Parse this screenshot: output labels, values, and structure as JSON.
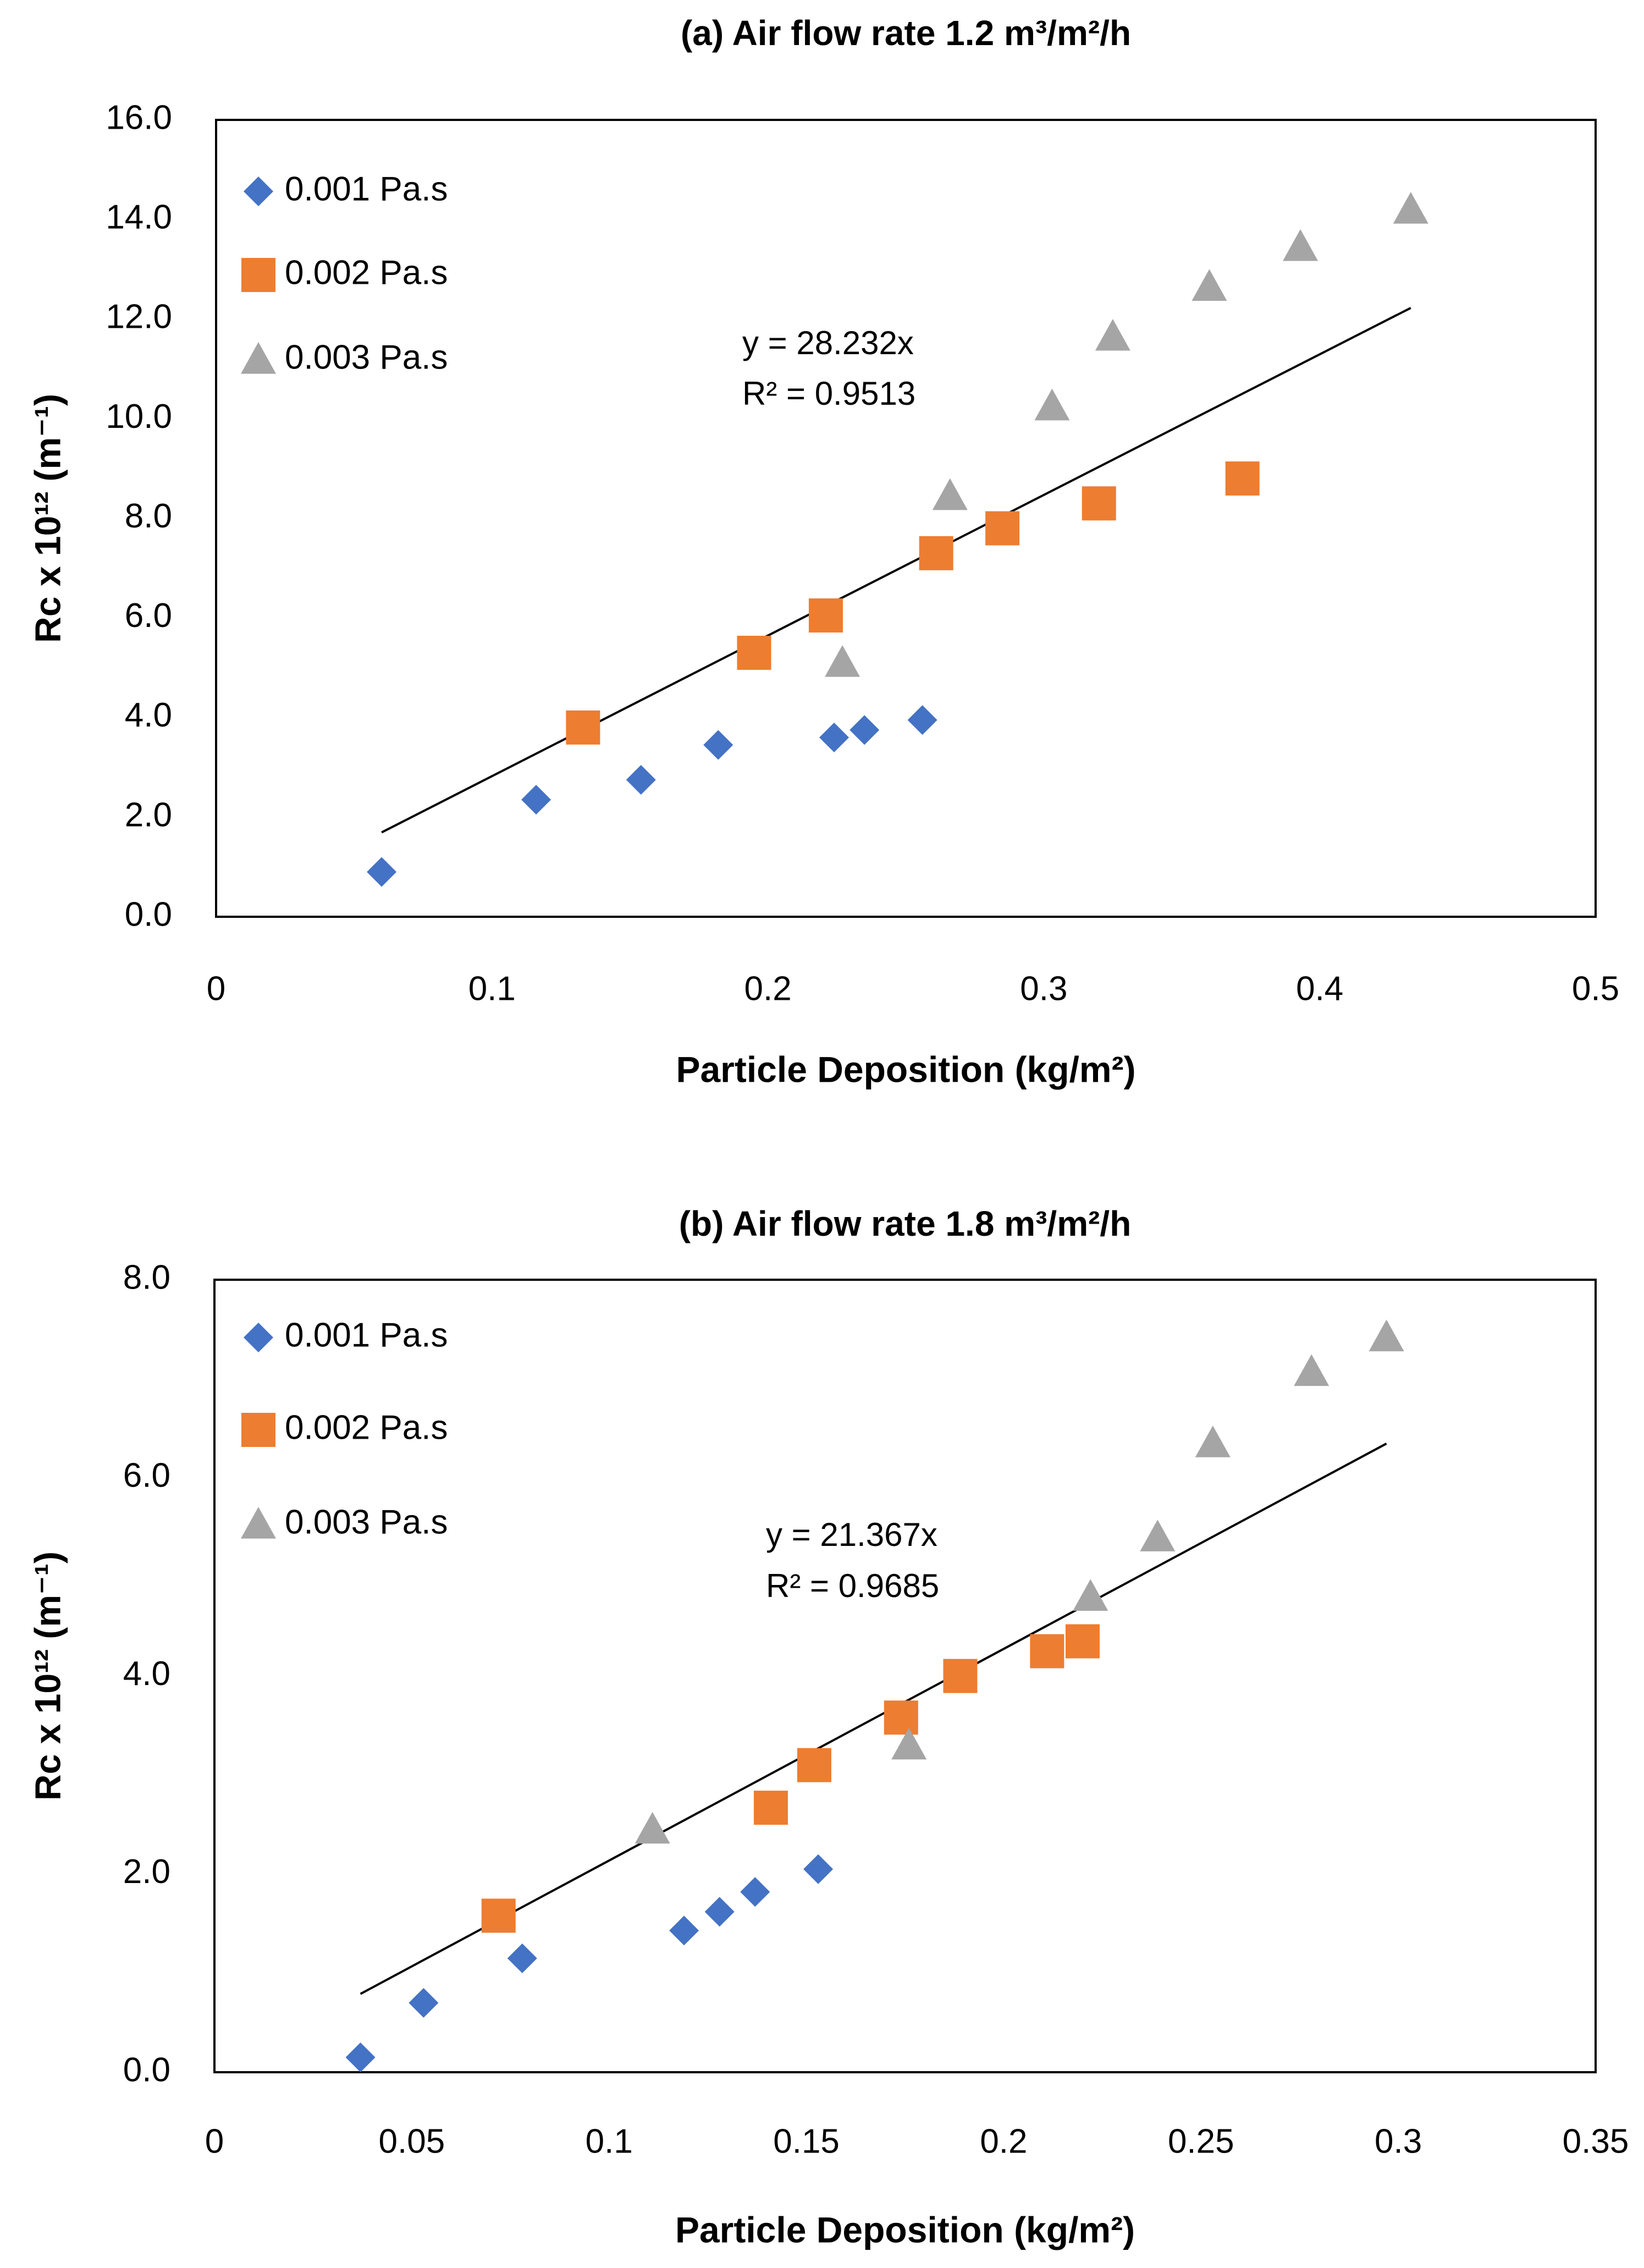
{
  "chart_data": [
    {
      "type": "scatter",
      "title": "(a) Air flow rate 1.2 m³/m²/h",
      "xlabel": "Particle Deposition (kg/m²)",
      "ylabel": "Rc x 10¹² (m⁻¹)",
      "xlim": [
        0,
        0.5
      ],
      "ylim": [
        0,
        16
      ],
      "x_ticks": [
        "0",
        "0.1",
        "0.2",
        "0.3",
        "0.4",
        "0.5"
      ],
      "y_ticks": [
        "0.0",
        "2.0",
        "4.0",
        "6.0",
        "8.0",
        "10.0",
        "12.0",
        "14.0",
        "16.0"
      ],
      "grid": false,
      "legend_position": "top-left",
      "series": [
        {
          "name": "0.001 Pa.s",
          "color": "#4472C4",
          "marker": "diamond",
          "points": [
            [
              0.06,
              0.9
            ],
            [
              0.116,
              2.35
            ],
            [
              0.154,
              2.75
            ],
            [
              0.182,
              3.45
            ],
            [
              0.224,
              3.6
            ],
            [
              0.235,
              3.75
            ],
            [
              0.256,
              3.95
            ]
          ]
        },
        {
          "name": "0.002 Pa.s",
          "color": "#ED7D31",
          "marker": "square",
          "points": [
            [
              0.133,
              3.8
            ],
            [
              0.195,
              5.3
            ],
            [
              0.221,
              6.05
            ],
            [
              0.261,
              7.3
            ],
            [
              0.285,
              7.8
            ],
            [
              0.32,
              8.3
            ],
            [
              0.372,
              8.8
            ]
          ]
        },
        {
          "name": "0.003 Pa.s",
          "color": "#A5A5A5",
          "marker": "triangle",
          "points": [
            [
              0.227,
              5.1
            ],
            [
              0.266,
              8.45
            ],
            [
              0.303,
              10.25
            ],
            [
              0.325,
              11.65
            ],
            [
              0.36,
              12.65
            ],
            [
              0.393,
              13.45
            ],
            [
              0.433,
              14.2
            ]
          ]
        }
      ],
      "trendline": {
        "slope": 28.232,
        "x_range": [
          0.06,
          0.433
        ],
        "equation": "y = 28.232x",
        "r2": "R² = 0.9513"
      }
    },
    {
      "type": "scatter",
      "title": "(b) Air flow rate 1.8 m³/m²/h",
      "xlabel": "Particle Deposition (kg/m²)",
      "ylabel": "Rc x 10¹² (m⁻¹)",
      "xlim": [
        0,
        0.35
      ],
      "ylim": [
        0,
        8
      ],
      "x_ticks": [
        "0",
        "0.05",
        "0.1",
        "0.15",
        "0.2",
        "0.25",
        "0.3",
        "0.35"
      ],
      "y_ticks": [
        "0.0",
        "2.0",
        "4.0",
        "6.0",
        "8.0"
      ],
      "grid": false,
      "legend_position": "top-left",
      "series": [
        {
          "name": "0.001 Pa.s",
          "color": "#4472C4",
          "marker": "diamond",
          "points": [
            [
              0.037,
              0.15
            ],
            [
              0.053,
              0.7
            ],
            [
              0.078,
              1.15
            ],
            [
              0.119,
              1.43
            ],
            [
              0.128,
              1.62
            ],
            [
              0.137,
              1.82
            ],
            [
              0.153,
              2.05
            ]
          ]
        },
        {
          "name": "0.002 Pa.s",
          "color": "#ED7D31",
          "marker": "square",
          "points": [
            [
              0.072,
              1.58
            ],
            [
              0.141,
              2.67
            ],
            [
              0.152,
              3.1
            ],
            [
              0.174,
              3.58
            ],
            [
              0.189,
              4.0
            ],
            [
              0.211,
              4.25
            ],
            [
              0.22,
              4.35
            ]
          ]
        },
        {
          "name": "0.003 Pa.s",
          "color": "#A5A5A5",
          "marker": "triangle",
          "points": [
            [
              0.111,
              2.45
            ],
            [
              0.176,
              3.3
            ],
            [
              0.222,
              4.8
            ],
            [
              0.239,
              5.4
            ],
            [
              0.253,
              6.35
            ],
            [
              0.278,
              7.07
            ],
            [
              0.297,
              7.42
            ]
          ]
        }
      ],
      "trendline": {
        "slope": 21.367,
        "x_range": [
          0.037,
          0.297
        ],
        "equation": "y = 21.367x",
        "r2": "R² = 0.9685"
      }
    }
  ]
}
